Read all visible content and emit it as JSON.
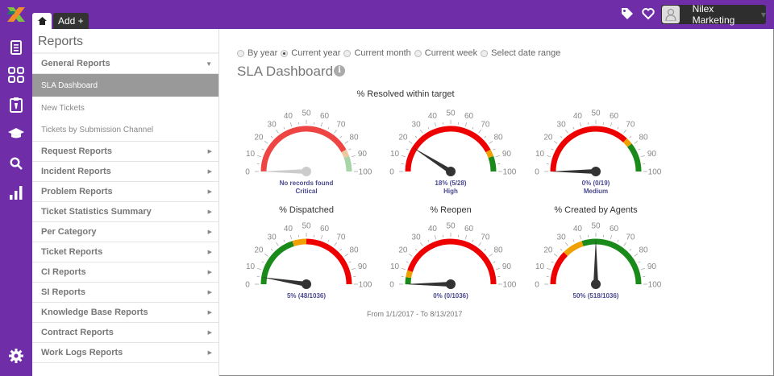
{
  "topbar": {
    "tabs": [
      {
        "icon": "home-icon"
      },
      {
        "label": "Add +"
      }
    ],
    "icons": [
      "tag-icon",
      "heart-icon"
    ],
    "user": {
      "name": "Nilex Marketing",
      "avatar": "user-avatar-icon"
    },
    "color": "#6f2da8"
  },
  "leftbar": {
    "icons": [
      "document-icon",
      "grid-icon",
      "clipboard-icon",
      "graduation-cap-icon",
      "search-icon",
      "bar-chart-icon",
      "gear-icon"
    ]
  },
  "sidebar": {
    "title": "Reports",
    "general": {
      "label": "General Reports",
      "expanded": true,
      "subitems": [
        {
          "label": "SLA Dashboard",
          "active": true
        },
        {
          "label": "New Tickets"
        },
        {
          "label": "Tickets by Submission Channel"
        }
      ]
    },
    "items": [
      {
        "label": "Request Reports"
      },
      {
        "label": "Incident Reports"
      },
      {
        "label": "Problem Reports"
      },
      {
        "label": "Ticket Statistics Summary"
      },
      {
        "label": "Per Category"
      },
      {
        "label": "Ticket Reports"
      },
      {
        "label": "CI Reports"
      },
      {
        "label": "SI Reports"
      },
      {
        "label": "Knowledge Base Reports"
      },
      {
        "label": "Contract Reports"
      },
      {
        "label": "Work Logs Reports"
      }
    ]
  },
  "main": {
    "filters": [
      {
        "label": "By year",
        "checked": false
      },
      {
        "label": "Current year",
        "checked": true
      },
      {
        "label": "Current month",
        "checked": false
      },
      {
        "label": "Current week",
        "checked": false
      },
      {
        "label": "Select date range",
        "checked": false
      }
    ],
    "title": "SLA Dashboard",
    "info_icon": "i",
    "section1_title": "% Resolved within target",
    "gauges": [
      {
        "title": "",
        "value": 0,
        "caption": "No records found",
        "sub": "Critical",
        "disabled": true,
        "bands": [
          {
            "from": 0,
            "to": 84,
            "color": "#ee4444"
          },
          {
            "from": 84,
            "to": 89,
            "color": "#f0c8a0"
          },
          {
            "from": 89,
            "to": 100,
            "color": "#a8d5a8"
          }
        ]
      },
      {
        "title": "",
        "value": 18,
        "caption": "18% (5/28)",
        "sub": "High",
        "bands": [
          {
            "from": 0,
            "to": 84,
            "color": "#ee0000"
          },
          {
            "from": 84,
            "to": 89,
            "color": "#f0a000"
          },
          {
            "from": 89,
            "to": 100,
            "color": "#1a8a1a"
          }
        ]
      },
      {
        "title": "",
        "value": 0,
        "caption": "0% (0/19)",
        "sub": "Medium",
        "bands": [
          {
            "from": 0,
            "to": 74,
            "color": "#ee0000"
          },
          {
            "from": 74,
            "to": 79,
            "color": "#f0a000"
          },
          {
            "from": 79,
            "to": 100,
            "color": "#1a8a1a"
          }
        ]
      },
      {
        "title": "% Dispatched",
        "value": 5,
        "caption": "5% (48/1036)",
        "sub": "",
        "bands": [
          {
            "from": 0,
            "to": 40,
            "color": "#1a8a1a"
          },
          {
            "from": 40,
            "to": 50,
            "color": "#f0a000"
          },
          {
            "from": 50,
            "to": 100,
            "color": "#ee0000"
          }
        ]
      },
      {
        "title": "% Reopen",
        "value": 0,
        "caption": "0% (0/1036)",
        "sub": "",
        "bands": [
          {
            "from": 0,
            "to": 5,
            "color": "#1a8a1a"
          },
          {
            "from": 5,
            "to": 10,
            "color": "#f0a000"
          },
          {
            "from": 10,
            "to": 100,
            "color": "#ee0000"
          }
        ]
      },
      {
        "title": "% Created by Agents",
        "value": 50,
        "caption": "50% (518/1036)",
        "sub": "",
        "bands": [
          {
            "from": 0,
            "to": 25,
            "color": "#ee0000"
          },
          {
            "from": 25,
            "to": 40,
            "color": "#f0a000"
          },
          {
            "from": 40,
            "to": 100,
            "color": "#1a8a1a"
          }
        ]
      }
    ],
    "ticks": [
      "0",
      "10",
      "20",
      "30",
      "40",
      "50",
      "60",
      "70",
      "80",
      "90",
      "100"
    ],
    "date_range": "From 1/1/2017 - To 8/13/2017"
  }
}
